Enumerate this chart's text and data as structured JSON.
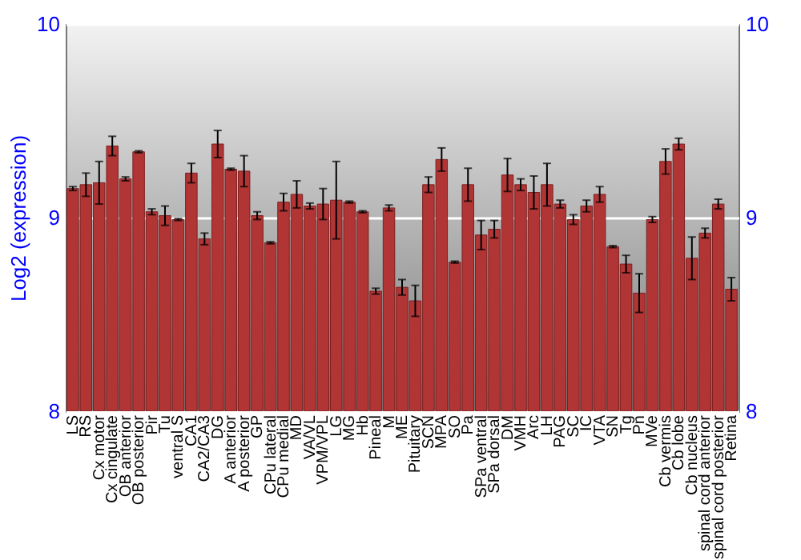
{
  "chart_data": {
    "type": "bar",
    "ylabel": "Log2 (expression)",
    "categories": [
      "LS",
      "RS",
      "Cx motor",
      "Cx cingulate",
      "OB anterior",
      "OB posterior",
      "Pir",
      "Tu",
      "ventral S",
      "CA1",
      "CA2/CA3",
      "DG",
      "A anterior",
      "A posterior",
      "GP",
      "CPu lateral",
      "CPu medial",
      "MD",
      "VA/VL",
      "VPM/VPL",
      "LG",
      "MG",
      "Hb",
      "Pineal",
      "M",
      "ME",
      "Pituitary",
      "SCN",
      "MPA",
      "SO",
      "Pa",
      "SPa ventral",
      "SPa dorsal",
      "DM",
      "VMH",
      "Arc",
      "LH",
      "PAG",
      "SC",
      "IC",
      "VTA",
      "SN",
      "Tg",
      "Pn",
      "MVe",
      "Cb vermis",
      "Cb lobe",
      "Cb nucleus",
      "spinal cord anterior",
      "spinal cord posterior",
      "Retina"
    ],
    "values": [
      9.15,
      9.17,
      9.18,
      9.37,
      9.2,
      9.34,
      9.03,
      9.01,
      8.99,
      9.23,
      8.89,
      9.38,
      9.25,
      9.24,
      9.01,
      8.87,
      9.08,
      9.12,
      9.06,
      9.07,
      9.09,
      9.08,
      9.03,
      8.62,
      9.05,
      8.64,
      8.57,
      9.17,
      9.3,
      8.77,
      9.17,
      8.91,
      8.94,
      9.22,
      9.17,
      9.13,
      9.17,
      9.07,
      8.99,
      9.06,
      9.12,
      8.85,
      8.76,
      8.61,
      8.99,
      9.29,
      9.38,
      8.79,
      8.92,
      9.07,
      8.63
    ],
    "errors": [
      0.01,
      0.06,
      0.11,
      0.05,
      0.01,
      0.005,
      0.015,
      0.05,
      0.005,
      0.05,
      0.03,
      0.07,
      0.005,
      0.08,
      0.02,
      0.005,
      0.045,
      0.07,
      0.015,
      0.08,
      0.2,
      0.005,
      0.005,
      0.015,
      0.015,
      0.04,
      0.08,
      0.04,
      0.06,
      0.005,
      0.085,
      0.075,
      0.045,
      0.085,
      0.03,
      0.085,
      0.11,
      0.02,
      0.025,
      0.03,
      0.04,
      0.005,
      0.045,
      0.1,
      0.015,
      0.065,
      0.03,
      0.11,
      0.025,
      0.025,
      0.06
    ],
    "color": "#b23535",
    "ylim": [
      8,
      10
    ],
    "yticks": [
      8,
      9,
      10
    ],
    "y2lim": [
      8,
      10
    ],
    "y2ticks": [
      8,
      9,
      10
    ],
    "grid": "y"
  }
}
